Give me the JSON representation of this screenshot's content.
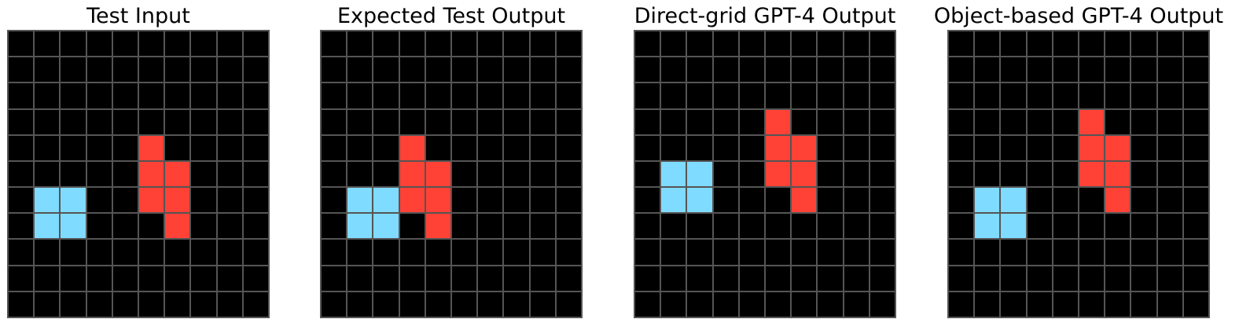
{
  "colors": {
    "0": "#000000",
    "2": "#ff4136",
    "8": "#7fdbff",
    "grid_line": "#555555"
  },
  "panels": [
    {
      "title": "Test Input",
      "grid": [
        [
          0,
          0,
          0,
          0,
          0,
          0,
          0,
          0,
          0,
          0
        ],
        [
          0,
          0,
          0,
          0,
          0,
          0,
          0,
          0,
          0,
          0
        ],
        [
          0,
          0,
          0,
          0,
          0,
          0,
          0,
          0,
          0,
          0
        ],
        [
          0,
          0,
          0,
          0,
          0,
          0,
          0,
          0,
          0,
          0
        ],
        [
          0,
          0,
          0,
          0,
          0,
          2,
          0,
          0,
          0,
          0
        ],
        [
          0,
          0,
          0,
          0,
          0,
          2,
          2,
          0,
          0,
          0
        ],
        [
          0,
          8,
          8,
          0,
          0,
          2,
          2,
          0,
          0,
          0
        ],
        [
          0,
          8,
          8,
          0,
          0,
          0,
          2,
          0,
          0,
          0
        ],
        [
          0,
          0,
          0,
          0,
          0,
          0,
          0,
          0,
          0,
          0
        ],
        [
          0,
          0,
          0,
          0,
          0,
          0,
          0,
          0,
          0,
          0
        ],
        [
          0,
          0,
          0,
          0,
          0,
          0,
          0,
          0,
          0,
          0
        ]
      ]
    },
    {
      "title": "Expected Test Output",
      "grid": [
        [
          0,
          0,
          0,
          0,
          0,
          0,
          0,
          0,
          0,
          0
        ],
        [
          0,
          0,
          0,
          0,
          0,
          0,
          0,
          0,
          0,
          0
        ],
        [
          0,
          0,
          0,
          0,
          0,
          0,
          0,
          0,
          0,
          0
        ],
        [
          0,
          0,
          0,
          0,
          0,
          0,
          0,
          0,
          0,
          0
        ],
        [
          0,
          0,
          0,
          2,
          0,
          0,
          0,
          0,
          0,
          0
        ],
        [
          0,
          0,
          0,
          2,
          2,
          0,
          0,
          0,
          0,
          0
        ],
        [
          0,
          8,
          8,
          2,
          2,
          0,
          0,
          0,
          0,
          0
        ],
        [
          0,
          8,
          8,
          0,
          2,
          0,
          0,
          0,
          0,
          0
        ],
        [
          0,
          0,
          0,
          0,
          0,
          0,
          0,
          0,
          0,
          0
        ],
        [
          0,
          0,
          0,
          0,
          0,
          0,
          0,
          0,
          0,
          0
        ],
        [
          0,
          0,
          0,
          0,
          0,
          0,
          0,
          0,
          0,
          0
        ]
      ]
    },
    {
      "title": "Direct-grid GPT-4 Output",
      "grid": [
        [
          0,
          0,
          0,
          0,
          0,
          0,
          0,
          0,
          0,
          0
        ],
        [
          0,
          0,
          0,
          0,
          0,
          0,
          0,
          0,
          0,
          0
        ],
        [
          0,
          0,
          0,
          0,
          0,
          0,
          0,
          0,
          0,
          0
        ],
        [
          0,
          0,
          0,
          0,
          0,
          2,
          0,
          0,
          0,
          0
        ],
        [
          0,
          0,
          0,
          0,
          0,
          2,
          2,
          0,
          0,
          0
        ],
        [
          0,
          8,
          8,
          0,
          0,
          2,
          2,
          0,
          0,
          0
        ],
        [
          0,
          8,
          8,
          0,
          0,
          0,
          2,
          0,
          0,
          0
        ],
        [
          0,
          0,
          0,
          0,
          0,
          0,
          0,
          0,
          0,
          0
        ],
        [
          0,
          0,
          0,
          0,
          0,
          0,
          0,
          0,
          0,
          0
        ],
        [
          0,
          0,
          0,
          0,
          0,
          0,
          0,
          0,
          0,
          0
        ],
        [
          0,
          0,
          0,
          0,
          0,
          0,
          0,
          0,
          0,
          0
        ]
      ]
    },
    {
      "title": "Object-based GPT-4 Output",
      "grid": [
        [
          0,
          0,
          0,
          0,
          0,
          0,
          0,
          0,
          0,
          0
        ],
        [
          0,
          0,
          0,
          0,
          0,
          0,
          0,
          0,
          0,
          0
        ],
        [
          0,
          0,
          0,
          0,
          0,
          0,
          0,
          0,
          0,
          0
        ],
        [
          0,
          0,
          0,
          0,
          0,
          2,
          0,
          0,
          0,
          0
        ],
        [
          0,
          0,
          0,
          0,
          0,
          2,
          2,
          0,
          0,
          0
        ],
        [
          0,
          0,
          0,
          0,
          0,
          2,
          2,
          0,
          0,
          0
        ],
        [
          0,
          8,
          8,
          0,
          0,
          0,
          2,
          0,
          0,
          0
        ],
        [
          0,
          8,
          8,
          0,
          0,
          0,
          0,
          0,
          0,
          0
        ],
        [
          0,
          0,
          0,
          0,
          0,
          0,
          0,
          0,
          0,
          0
        ],
        [
          0,
          0,
          0,
          0,
          0,
          0,
          0,
          0,
          0,
          0
        ],
        [
          0,
          0,
          0,
          0,
          0,
          0,
          0,
          0,
          0,
          0
        ]
      ]
    }
  ]
}
